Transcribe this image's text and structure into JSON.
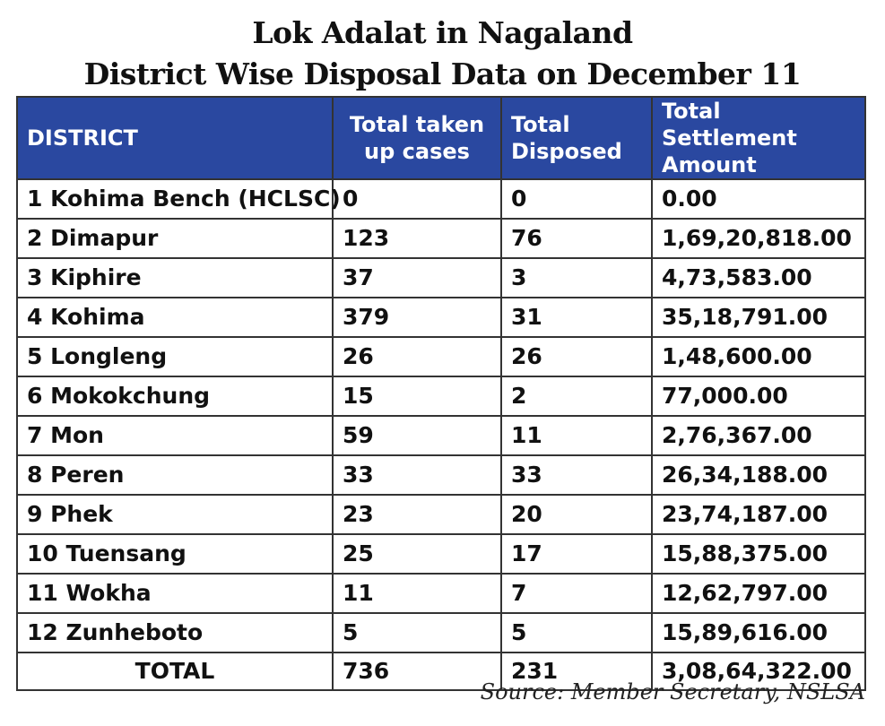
{
  "title": {
    "line1": "Lok Adalat in Nagaland",
    "line2": "District Wise Disposal Data on December 11"
  },
  "table": {
    "headers": {
      "district": "DISTRICT",
      "taken_line1": "Total taken",
      "taken_line2": "up cases",
      "disposed_line1": "Total",
      "disposed_line2": "Disposed",
      "amount_line1": "Total Settlement",
      "amount_line2": "Amount"
    },
    "rows": [
      {
        "district": "1 Kohima Bench (HCLSC)",
        "taken": "0",
        "disposed": "0",
        "amount": "0.00"
      },
      {
        "district": "2 Dimapur",
        "taken": "123",
        "disposed": "76",
        "amount": "1,69,20,818.00"
      },
      {
        "district": "3 Kiphire",
        "taken": "37",
        "disposed": "3",
        "amount": "4,73,583.00"
      },
      {
        "district": "4 Kohima",
        "taken": "379",
        "disposed": "31",
        "amount": "35,18,791.00"
      },
      {
        "district": "5 Longleng",
        "taken": "26",
        "disposed": "26",
        "amount": "1,48,600.00"
      },
      {
        "district": "6 Mokokchung",
        "taken": "15",
        "disposed": "2",
        "amount": "77,000.00"
      },
      {
        "district": "7 Mon",
        "taken": "59",
        "disposed": "11",
        "amount": "2,76,367.00"
      },
      {
        "district": "8 Peren",
        "taken": "33",
        "disposed": "33",
        "amount": "26,34,188.00"
      },
      {
        "district": "9 Phek",
        "taken": "23",
        "disposed": "20",
        "amount": "23,74,187.00"
      },
      {
        "district": "10 Tuensang",
        "taken": "25",
        "disposed": "17",
        "amount": "15,88,375.00"
      },
      {
        "district": "11 Wokha",
        "taken": "11",
        "disposed": "7",
        "amount": "12,62,797.00"
      },
      {
        "district": "12 Zunheboto",
        "taken": "5",
        "disposed": "5",
        "amount": "15,89,616.00"
      }
    ],
    "total": {
      "label": "TOTAL",
      "taken": "736",
      "disposed": "231",
      "amount": "3,08,64,322.00"
    }
  },
  "source": "Source: Member Secretary, NSLSA",
  "colors": {
    "header_bg": "#2a48a0",
    "header_text": "#ffffff",
    "border": "#333333"
  }
}
